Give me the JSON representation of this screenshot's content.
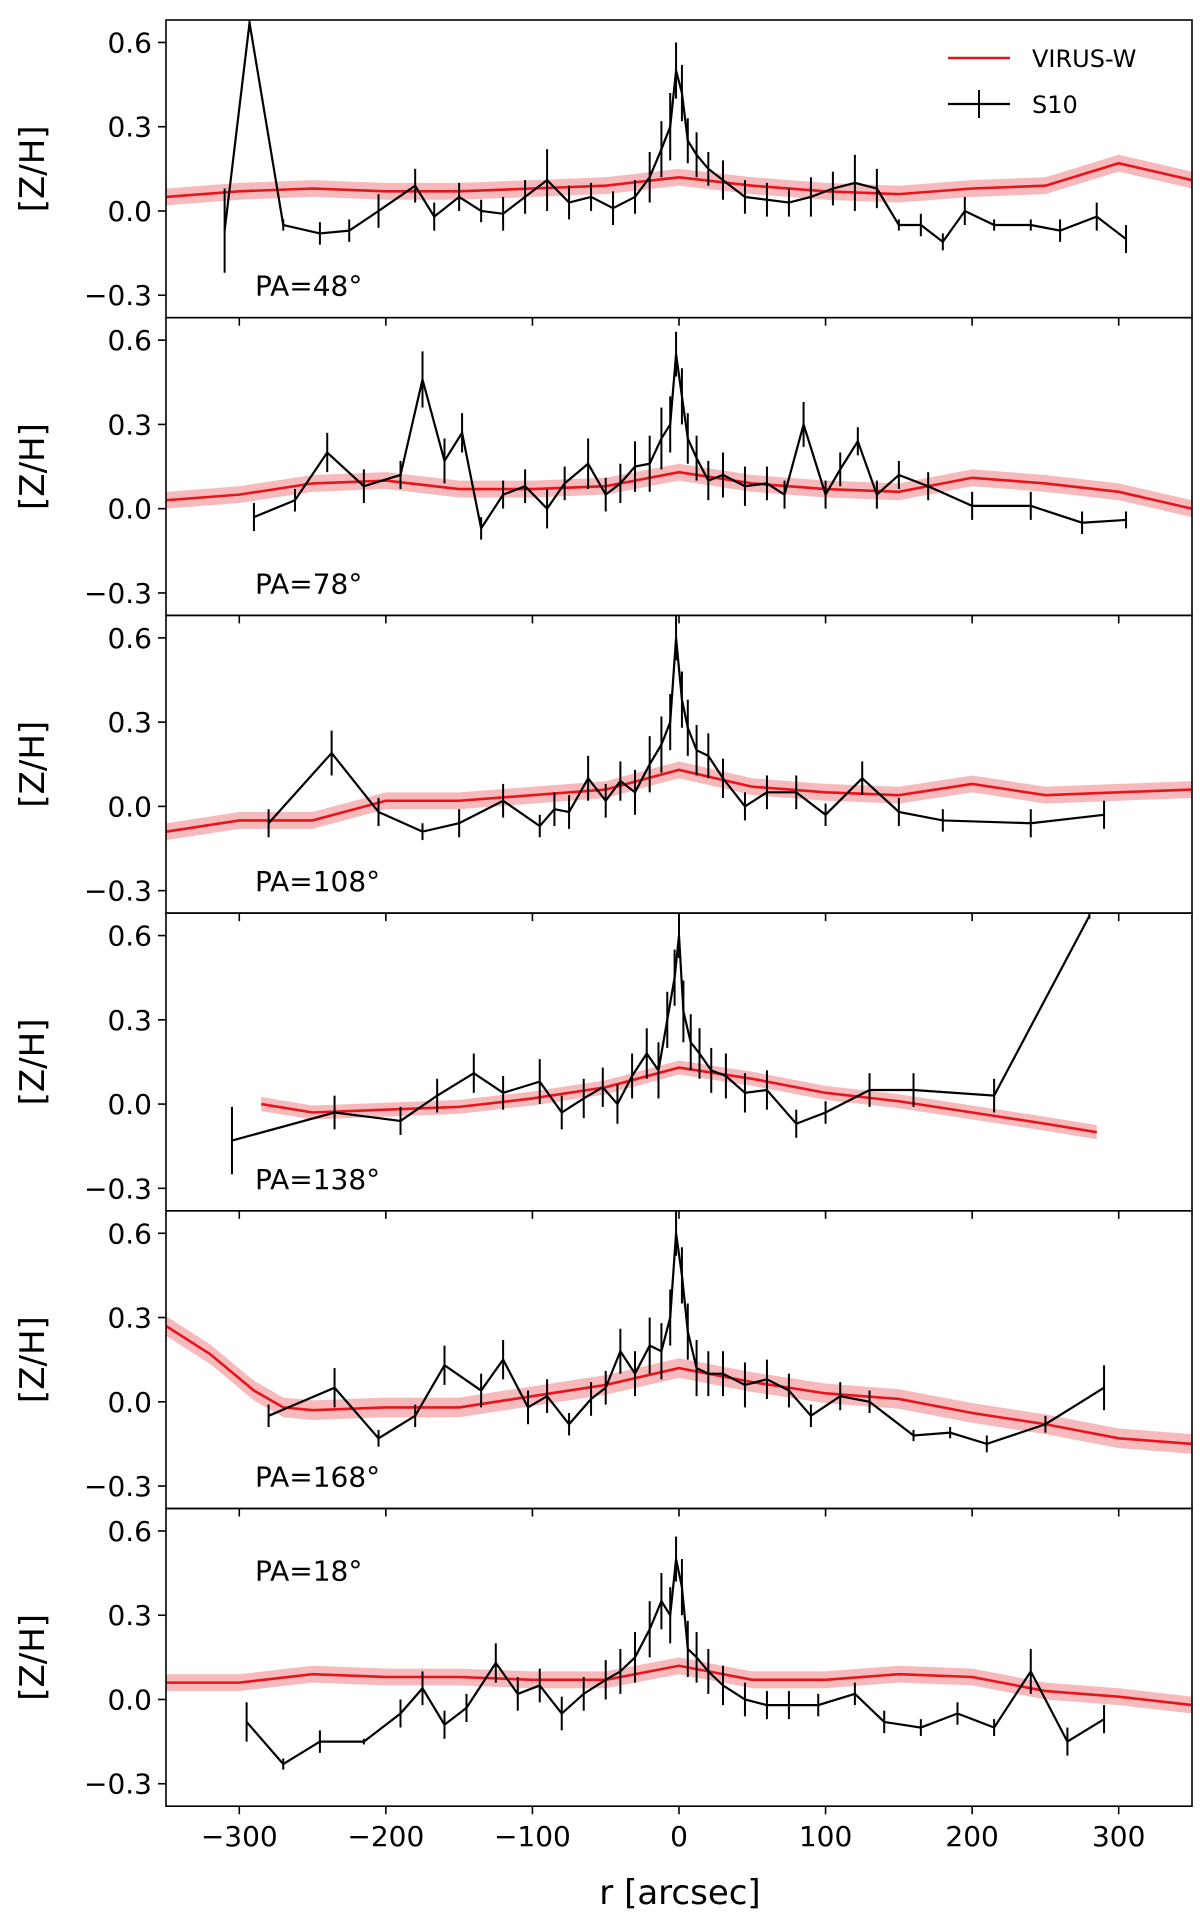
{
  "chart_data": {
    "type": "line",
    "xlabel": "r [arcsec]",
    "ylabel": "[Z/H]",
    "xlim": [
      -350,
      350
    ],
    "ylim": [
      -0.38,
      0.68
    ],
    "x_ticks": [
      -300,
      -200,
      -100,
      0,
      100,
      200,
      300
    ],
    "x_tick_labels": [
      "−300",
      "−200",
      "−100",
      "0",
      "100",
      "200",
      "300"
    ],
    "y_ticks": [
      -0.3,
      0.0,
      0.3,
      0.6
    ],
    "y_tick_labels": [
      "−0.3",
      "0.0",
      "0.3",
      "0.6"
    ],
    "legend": {
      "placement": "top-right",
      "entries": [
        {
          "label": "VIRUS-W",
          "color": "#e8141c"
        },
        {
          "label": "S10",
          "color": "#000000"
        }
      ]
    },
    "colors": {
      "virus_line": "#e8141c",
      "virus_band": "#f4a3a6",
      "s10": "#000000"
    },
    "panels": [
      {
        "label": "PA=48°",
        "label_position": "bottom-left",
        "virus": {
          "x": [
            -350,
            -300,
            -250,
            -200,
            -150,
            -100,
            -50,
            0,
            50,
            100,
            150,
            200,
            250,
            300,
            350
          ],
          "y": [
            0.05,
            0.07,
            0.08,
            0.07,
            0.07,
            0.08,
            0.09,
            0.12,
            0.09,
            0.07,
            0.06,
            0.08,
            0.09,
            0.17,
            0.11
          ],
          "band": 0.03
        },
        "s10": {
          "x": [
            -310,
            -293,
            -270,
            -245,
            -225,
            -205,
            -180,
            -167,
            -150,
            -135,
            -120,
            -105,
            -90,
            -75,
            -60,
            -45,
            -30,
            -20,
            -12,
            -6,
            -2,
            2,
            6,
            12,
            20,
            30,
            45,
            60,
            75,
            90,
            105,
            120,
            135,
            150,
            165,
            180,
            195,
            215,
            240,
            260,
            285,
            305
          ],
          "y": [
            -0.07,
            0.67,
            -0.05,
            -0.08,
            -0.07,
            0.0,
            0.09,
            -0.02,
            0.05,
            0.0,
            -0.01,
            0.05,
            0.11,
            0.03,
            0.05,
            0.01,
            0.05,
            0.12,
            0.22,
            0.3,
            0.5,
            0.42,
            0.25,
            0.2,
            0.15,
            0.11,
            0.05,
            0.04,
            0.03,
            0.05,
            0.08,
            0.1,
            0.08,
            -0.05,
            -0.05,
            -0.11,
            0.0,
            -0.05,
            -0.05,
            -0.07,
            -0.02,
            -0.1
          ],
          "err": [
            0.15,
            0.03,
            0.02,
            0.04,
            0.04,
            0.06,
            0.06,
            0.05,
            0.05,
            0.04,
            0.06,
            0.06,
            0.11,
            0.06,
            0.05,
            0.06,
            0.06,
            0.09,
            0.1,
            0.12,
            0.1,
            0.1,
            0.08,
            0.08,
            0.06,
            0.07,
            0.06,
            0.06,
            0.05,
            0.07,
            0.06,
            0.1,
            0.07,
            0.02,
            0.04,
            0.03,
            0.05,
            0.02,
            0.02,
            0.04,
            0.05,
            0.05
          ]
        }
      },
      {
        "label": "PA=78°",
        "label_position": "bottom-left",
        "virus": {
          "x": [
            -350,
            -300,
            -250,
            -200,
            -150,
            -100,
            -50,
            0,
            50,
            100,
            150,
            200,
            250,
            300,
            350
          ],
          "y": [
            0.03,
            0.05,
            0.09,
            0.1,
            0.07,
            0.07,
            0.08,
            0.13,
            0.09,
            0.07,
            0.06,
            0.11,
            0.09,
            0.06,
            0.0
          ],
          "band": 0.03
        },
        "s10": {
          "x": [
            -290,
            -262,
            -240,
            -215,
            -190,
            -175,
            -160,
            -148,
            -135,
            -120,
            -105,
            -90,
            -78,
            -62,
            -50,
            -40,
            -30,
            -20,
            -12,
            -6,
            -2,
            2,
            6,
            12,
            20,
            30,
            45,
            60,
            72,
            85,
            100,
            110,
            122,
            135,
            150,
            170,
            200,
            240,
            275,
            305
          ],
          "y": [
            -0.03,
            0.03,
            0.2,
            0.08,
            0.12,
            0.46,
            0.17,
            0.27,
            -0.07,
            0.05,
            0.08,
            0.0,
            0.09,
            0.16,
            0.05,
            0.09,
            0.15,
            0.16,
            0.25,
            0.3,
            0.55,
            0.4,
            0.25,
            0.18,
            0.1,
            0.12,
            0.08,
            0.09,
            0.05,
            0.3,
            0.05,
            0.14,
            0.24,
            0.05,
            0.12,
            0.08,
            0.01,
            0.01,
            -0.05,
            -0.04
          ],
          "err": [
            0.05,
            0.04,
            0.07,
            0.06,
            0.05,
            0.1,
            0.08,
            0.07,
            0.04,
            0.05,
            0.06,
            0.07,
            0.06,
            0.09,
            0.06,
            0.07,
            0.09,
            0.1,
            0.11,
            0.1,
            0.08,
            0.1,
            0.09,
            0.08,
            0.07,
            0.08,
            0.07,
            0.06,
            0.05,
            0.08,
            0.05,
            0.06,
            0.05,
            0.05,
            0.05,
            0.05,
            0.05,
            0.05,
            0.04,
            0.03
          ]
        }
      },
      {
        "label": "PA=108°",
        "label_position": "bottom-left",
        "virus": {
          "x": [
            -350,
            -300,
            -250,
            -200,
            -150,
            -100,
            -50,
            0,
            50,
            100,
            150,
            200,
            250,
            300,
            350
          ],
          "y": [
            -0.09,
            -0.05,
            -0.05,
            0.02,
            0.02,
            0.04,
            0.06,
            0.13,
            0.07,
            0.05,
            0.04,
            0.08,
            0.04,
            0.05,
            0.06
          ],
          "band": 0.03
        },
        "s10": {
          "x": [
            -280,
            -237,
            -205,
            -175,
            -150,
            -120,
            -95,
            -85,
            -75,
            -62,
            -50,
            -40,
            -30,
            -20,
            -12,
            -6,
            -2,
            2,
            6,
            12,
            20,
            30,
            45,
            60,
            80,
            100,
            125,
            150,
            180,
            240,
            290
          ],
          "y": [
            -0.06,
            0.19,
            -0.02,
            -0.09,
            -0.06,
            0.02,
            -0.07,
            -0.01,
            -0.02,
            0.1,
            0.02,
            0.09,
            0.05,
            0.15,
            0.22,
            0.3,
            0.6,
            0.38,
            0.28,
            0.2,
            0.18,
            0.1,
            0.0,
            0.05,
            0.05,
            -0.03,
            0.1,
            -0.02,
            -0.05,
            -0.06,
            -0.03
          ],
          "err": [
            0.05,
            0.08,
            0.05,
            0.03,
            0.05,
            0.06,
            0.04,
            0.06,
            0.06,
            0.08,
            0.06,
            0.07,
            0.08,
            0.1,
            0.1,
            0.1,
            0.08,
            0.1,
            0.1,
            0.09,
            0.08,
            0.07,
            0.05,
            0.06,
            0.06,
            0.04,
            0.06,
            0.05,
            0.04,
            0.05,
            0.05
          ]
        }
      },
      {
        "label": "PA=138°",
        "label_position": "bottom-left",
        "virus": {
          "x": [
            -285,
            -250,
            -200,
            -150,
            -100,
            -50,
            0,
            50,
            100,
            150,
            200,
            250,
            285
          ],
          "y": [
            0.0,
            -0.03,
            -0.02,
            -0.01,
            0.02,
            0.06,
            0.13,
            0.09,
            0.04,
            0.01,
            -0.03,
            -0.07,
            -0.1
          ],
          "band": 0.025
        },
        "s10": {
          "x": [
            -305,
            -235,
            -190,
            -165,
            -140,
            -120,
            -95,
            -80,
            -65,
            -52,
            -42,
            -32,
            -22,
            -14,
            -8,
            -3,
            0,
            3,
            8,
            14,
            22,
            32,
            45,
            60,
            80,
            100,
            130,
            160,
            215,
            280
          ],
          "y": [
            -0.13,
            -0.03,
            -0.06,
            0.03,
            0.11,
            0.04,
            0.08,
            -0.03,
            0.02,
            0.06,
            0.0,
            0.1,
            0.18,
            0.12,
            0.3,
            0.45,
            0.6,
            0.33,
            0.22,
            0.18,
            0.12,
            0.1,
            0.04,
            0.05,
            -0.07,
            -0.03,
            0.05,
            0.05,
            0.03,
            0.67
          ],
          "err": [
            0.12,
            0.06,
            0.05,
            0.06,
            0.07,
            0.06,
            0.08,
            0.06,
            0.07,
            0.07,
            0.07,
            0.08,
            0.09,
            0.1,
            0.1,
            0.1,
            0.08,
            0.11,
            0.1,
            0.09,
            0.08,
            0.08,
            0.07,
            0.07,
            0.05,
            0.04,
            0.06,
            0.06,
            0.06,
            0.01
          ]
        }
      },
      {
        "label": "PA=168°",
        "label_position": "bottom-left",
        "virus": {
          "x": [
            -350,
            -320,
            -290,
            -270,
            -250,
            -200,
            -150,
            -100,
            -50,
            0,
            50,
            100,
            150,
            200,
            250,
            300,
            350
          ],
          "y": [
            0.27,
            0.17,
            0.04,
            -0.02,
            -0.03,
            -0.02,
            -0.02,
            0.02,
            0.06,
            0.12,
            0.07,
            0.03,
            0.01,
            -0.04,
            -0.08,
            -0.13,
            -0.15
          ],
          "band": 0.035
        },
        "s10": {
          "x": [
            -280,
            -235,
            -205,
            -180,
            -160,
            -135,
            -120,
            -103,
            -90,
            -75,
            -60,
            -50,
            -40,
            -30,
            -20,
            -12,
            -6,
            -2,
            2,
            6,
            12,
            20,
            30,
            45,
            60,
            75,
            90,
            110,
            130,
            160,
            185,
            210,
            250,
            290
          ],
          "y": [
            -0.05,
            0.05,
            -0.13,
            -0.05,
            0.13,
            0.04,
            0.15,
            -0.02,
            0.02,
            -0.08,
            0.01,
            0.05,
            0.18,
            0.1,
            0.2,
            0.18,
            0.3,
            0.6,
            0.45,
            0.25,
            0.12,
            0.1,
            0.1,
            0.06,
            0.08,
            0.04,
            -0.05,
            0.02,
            0.0,
            -0.12,
            -0.11,
            -0.15,
            -0.08,
            0.05
          ],
          "err": [
            0.04,
            0.07,
            0.03,
            0.04,
            0.07,
            0.06,
            0.07,
            0.06,
            0.06,
            0.04,
            0.06,
            0.06,
            0.08,
            0.08,
            0.1,
            0.1,
            0.1,
            0.08,
            0.1,
            0.1,
            0.1,
            0.08,
            0.08,
            0.08,
            0.07,
            0.06,
            0.04,
            0.05,
            0.04,
            0.02,
            0.02,
            0.03,
            0.03,
            0.08
          ]
        }
      },
      {
        "label": "PA=18°",
        "label_position": "top-left",
        "virus": {
          "x": [
            -350,
            -300,
            -250,
            -200,
            -150,
            -100,
            -50,
            0,
            50,
            100,
            150,
            200,
            250,
            300,
            350
          ],
          "y": [
            0.06,
            0.06,
            0.09,
            0.08,
            0.08,
            0.07,
            0.07,
            0.12,
            0.07,
            0.07,
            0.09,
            0.08,
            0.03,
            0.01,
            -0.02
          ],
          "band": 0.03
        },
        "s10": {
          "x": [
            -295,
            -270,
            -245,
            -215,
            -190,
            -175,
            -160,
            -145,
            -125,
            -110,
            -95,
            -80,
            -65,
            -50,
            -40,
            -30,
            -20,
            -12,
            -6,
            -2,
            2,
            6,
            12,
            20,
            30,
            45,
            60,
            75,
            95,
            120,
            140,
            165,
            190,
            215,
            240,
            265,
            290
          ],
          "y": [
            -0.08,
            -0.23,
            -0.15,
            -0.15,
            -0.05,
            0.04,
            -0.09,
            -0.03,
            0.13,
            0.02,
            0.05,
            -0.05,
            0.02,
            0.07,
            0.1,
            0.15,
            0.25,
            0.35,
            0.3,
            0.5,
            0.4,
            0.18,
            0.15,
            0.1,
            0.05,
            0.0,
            -0.02,
            -0.02,
            -0.02,
            0.02,
            -0.08,
            -0.1,
            -0.05,
            -0.1,
            0.1,
            -0.15,
            -0.07
          ],
          "err": [
            0.07,
            0.02,
            0.04,
            0.01,
            0.05,
            0.06,
            0.05,
            0.05,
            0.07,
            0.06,
            0.06,
            0.06,
            0.06,
            0.07,
            0.08,
            0.09,
            0.1,
            0.1,
            0.1,
            0.08,
            0.1,
            0.1,
            0.09,
            0.08,
            0.07,
            0.06,
            0.05,
            0.05,
            0.04,
            0.04,
            0.04,
            0.03,
            0.04,
            0.03,
            0.08,
            0.05,
            0.05
          ]
        }
      }
    ]
  }
}
